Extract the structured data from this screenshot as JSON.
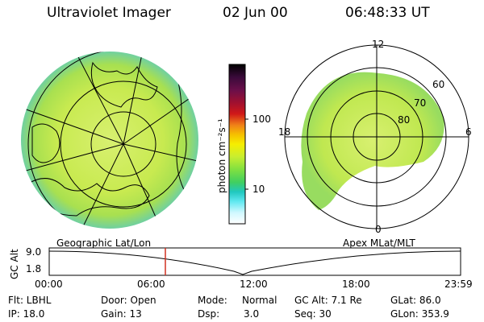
{
  "header": {
    "title": "Ultraviolet Imager",
    "date": "02 Jun 00",
    "time": "06:48:33 UT"
  },
  "colorbar": {
    "unit_label": "photon cm⁻²s⁻¹",
    "ticks": [
      "100",
      "10"
    ],
    "colors": [
      "#000000",
      "#3a0a3a",
      "#6a0f4a",
      "#a01030",
      "#d01818",
      "#f08018",
      "#f6c000",
      "#f6ee00",
      "#c8ee30",
      "#80e040",
      "#40cf60",
      "#20c8c0",
      "#60e8f0",
      "#d0f8ff",
      "#ffffff"
    ]
  },
  "polar_labels": {
    "top": "12",
    "bottom": "0",
    "left": "18",
    "right": "6",
    "lat_60": "60",
    "lat_70": "70",
    "lat_80": "80"
  },
  "left_plot_label": "Geographic Lat/Lon",
  "right_plot_label": "Apex MLat/MLT",
  "altitude_plot": {
    "axis_label": "GC Alt",
    "y_top": "9.0",
    "y_bottom": "1.8",
    "x_ticks": [
      "00:00",
      "06:00",
      "12:00",
      "18:00",
      "23:59"
    ],
    "marker_color": "#d03020"
  },
  "info": {
    "flt": "Flt: LBHL",
    "ip": "IP: 18.0",
    "door": "Door: Open",
    "gain": "Gain: 13",
    "mode_label": "Mode:",
    "mode_value": "Normal",
    "dsp_label": "Dsp:",
    "dsp_value": "3.0",
    "gcalt": "GC Alt: 7.1 Re",
    "seq": "Seq: 30",
    "glat": "GLat: 86.0",
    "glon": "GLon: 353.9"
  }
}
